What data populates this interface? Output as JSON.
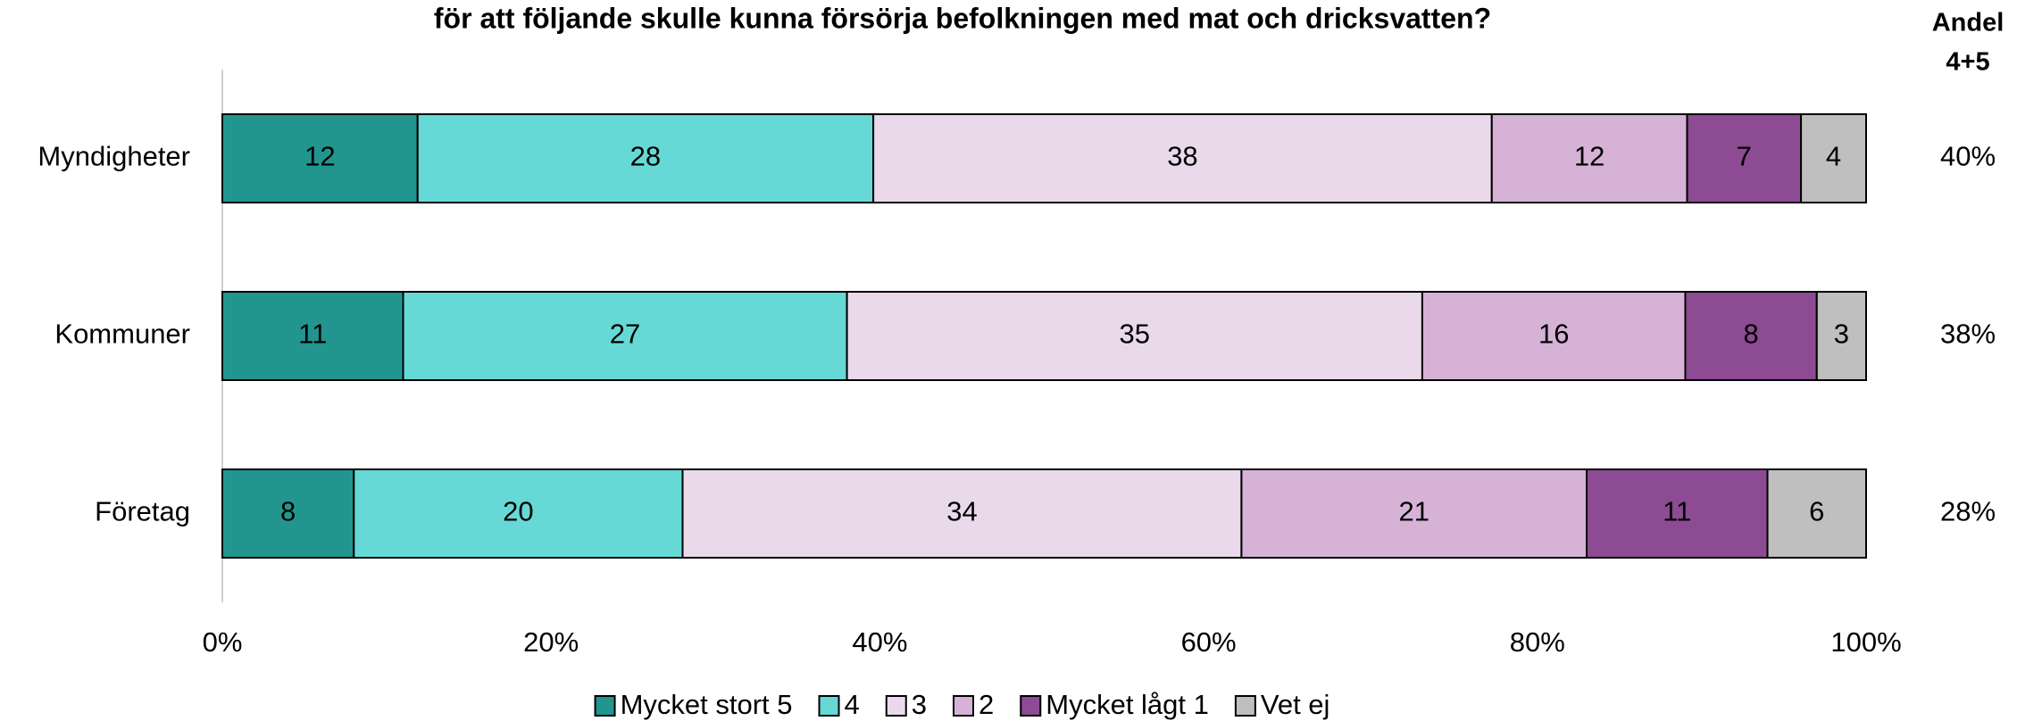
{
  "chart_data": {
    "type": "bar",
    "orientation": "horizontal",
    "stacked": "percent",
    "title": "för att följande skulle kunna försörja befolkningen med mat och dricksvatten?",
    "categories": [
      "Myndigheter",
      "Kommuner",
      "Företag"
    ],
    "series": [
      {
        "name": "Mycket stort 5",
        "color": "#23958f",
        "values": [
          12,
          11,
          8
        ]
      },
      {
        "name": "4",
        "color": "#66d9d6",
        "values": [
          28,
          27,
          20
        ]
      },
      {
        "name": "3",
        "color": "#ead9eb",
        "values": [
          38,
          35,
          34
        ]
      },
      {
        "name": "2",
        "color": "#d6b2d7",
        "values": [
          12,
          16,
          21
        ]
      },
      {
        "name": "Mycket lågt 1",
        "color": "#8c4b92",
        "values": [
          7,
          8,
          11
        ]
      },
      {
        "name": "Vet ej",
        "color": "#bfbfbf",
        "values": [
          4,
          3,
          6
        ]
      }
    ],
    "xlim": [
      0,
      100
    ],
    "xticks": [
      {
        "value": 0,
        "label": "0%"
      },
      {
        "value": 20,
        "label": "20%"
      },
      {
        "value": 40,
        "label": "40%"
      },
      {
        "value": 60,
        "label": "60%"
      },
      {
        "value": 80,
        "label": "80%"
      },
      {
        "value": 100,
        "label": "100%"
      }
    ],
    "legend": "bottom",
    "share": {
      "header": [
        "Andel",
        "4+5"
      ],
      "values": [
        40,
        38,
        28
      ],
      "value_labels": [
        "40%",
        "38%",
        "28%"
      ]
    }
  }
}
